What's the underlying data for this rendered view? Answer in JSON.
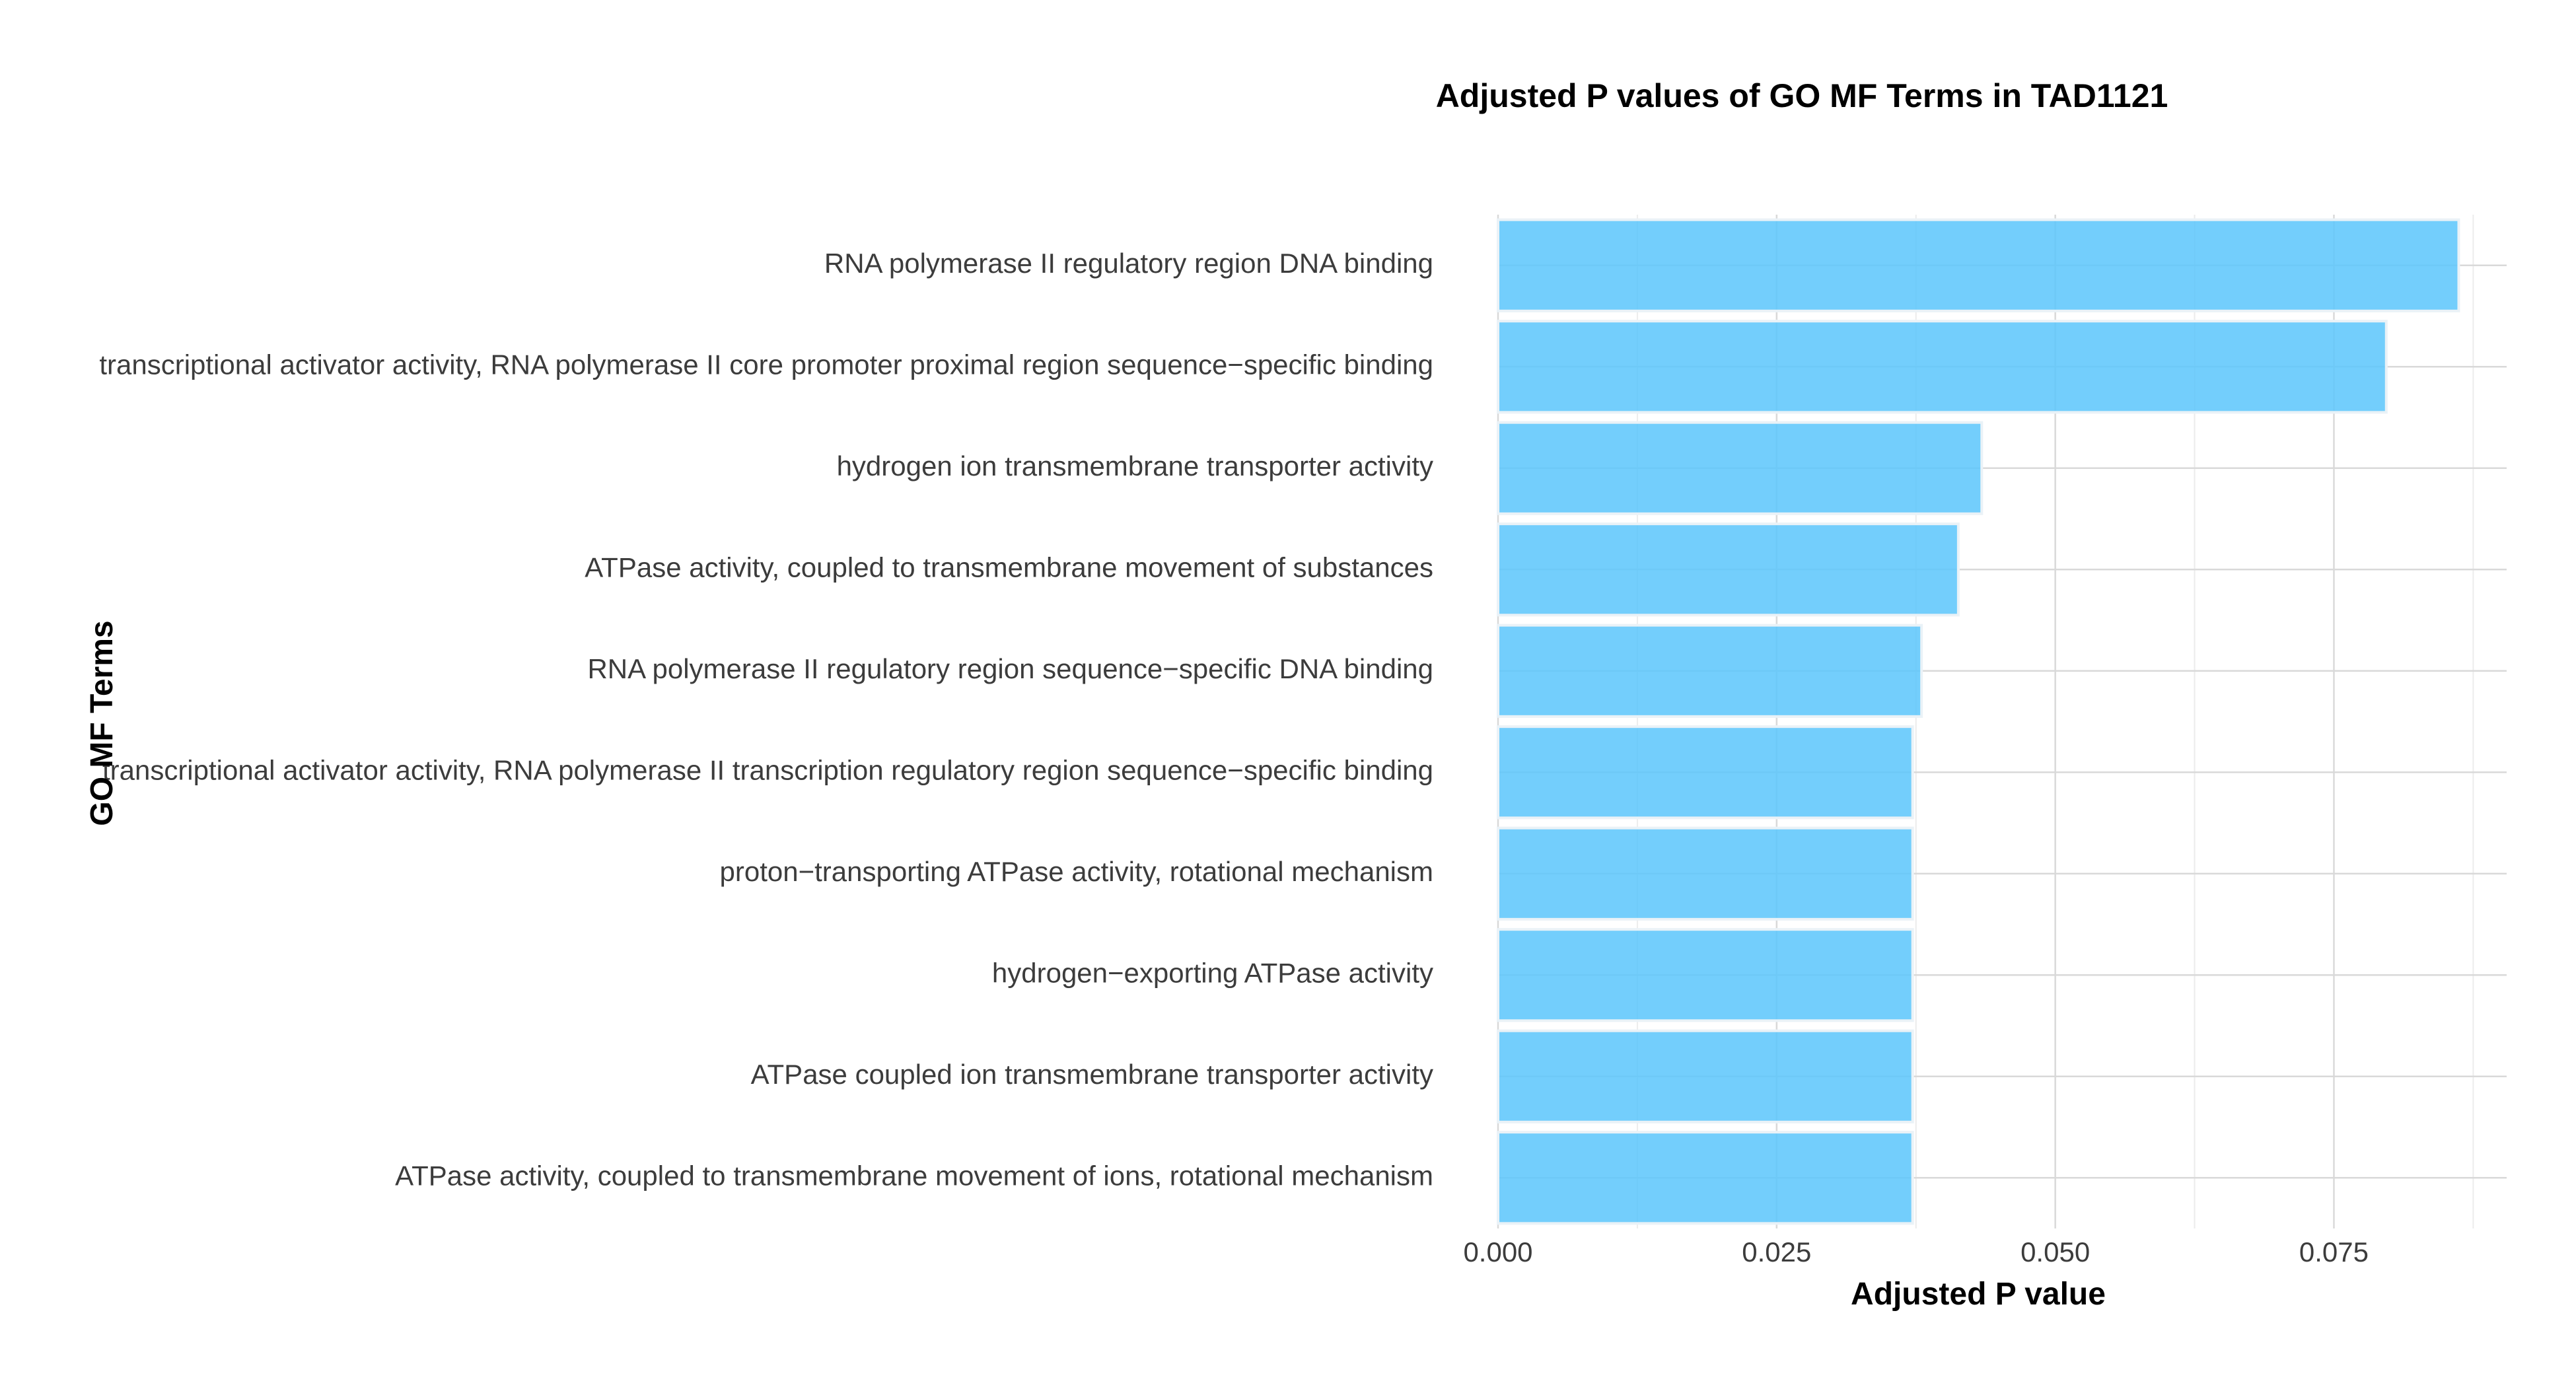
{
  "chart_data": {
    "type": "bar",
    "orientation": "horizontal",
    "title": "Adjusted P values of GO MF Terms in TAD1121",
    "xlabel": "Adjusted P value",
    "ylabel": "GO MF Terms",
    "xlim": [
      0,
      0.0905
    ],
    "x_ticks": [
      "0.000",
      "0.025",
      "0.050",
      "0.075"
    ],
    "x_tick_values": [
      0,
      0.025,
      0.05,
      0.075
    ],
    "bar_color": "#5bc5fb",
    "grid": true,
    "categories": [
      "RNA polymerase II regulatory region DNA binding",
      "transcriptional activator activity, RNA polymerase II core promoter proximal region sequence−specific binding",
      "hydrogen ion transmembrane transporter activity",
      "ATPase activity, coupled to transmembrane movement of substances",
      "RNA polymerase II regulatory region sequence−specific DNA binding",
      "transcriptional activator activity, RNA polymerase II transcription regulatory region sequence−specific binding",
      "proton−transporting ATPase activity, rotational mechanism",
      "hydrogen−exporting ATPase activity",
      "ATPase coupled ion transmembrane transporter activity",
      "ATPase activity, coupled to transmembrane movement of ions, rotational mechanism"
    ],
    "values": [
      0.0862,
      0.0797,
      0.0434,
      0.0413,
      0.038,
      0.0372,
      0.0372,
      0.0372,
      0.0372,
      0.0372
    ]
  }
}
